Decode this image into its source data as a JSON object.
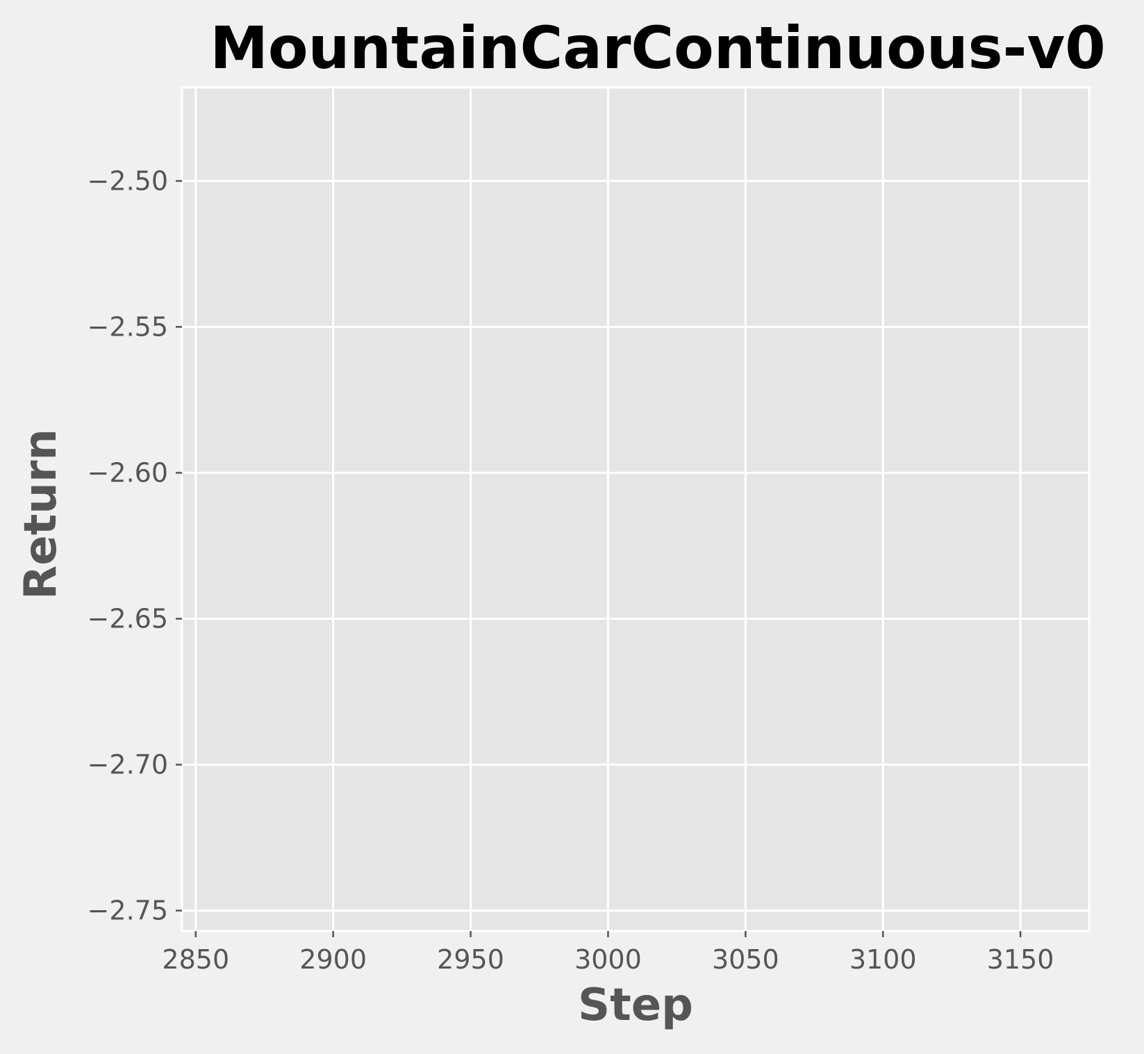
{
  "chart_data": {
    "type": "line",
    "title": "MountainCarContinuous-v0",
    "xlabel": "Step",
    "ylabel": "Return",
    "xlim": [
      2845,
      3175
    ],
    "ylim": [
      -2.757,
      -2.468
    ],
    "xticks": [
      2850,
      2900,
      2950,
      3000,
      3050,
      3100,
      3150
    ],
    "xtick_labels": [
      "2850",
      "2900",
      "2950",
      "3000",
      "3050",
      "3100",
      "3150"
    ],
    "yticks": [
      -2.5,
      -2.55,
      -2.6,
      -2.65,
      -2.7,
      -2.75
    ],
    "ytick_labels": [
      "−2.50",
      "−2.55",
      "−2.60",
      "−2.65",
      "−2.70",
      "−2.75"
    ],
    "grid": true,
    "series": [],
    "colors": {
      "figure_background": "#f0f0f0",
      "plot_background": "#e5e5e5",
      "grid": "#ffffff",
      "title_text": "#000000",
      "label_text": "#555555"
    }
  }
}
